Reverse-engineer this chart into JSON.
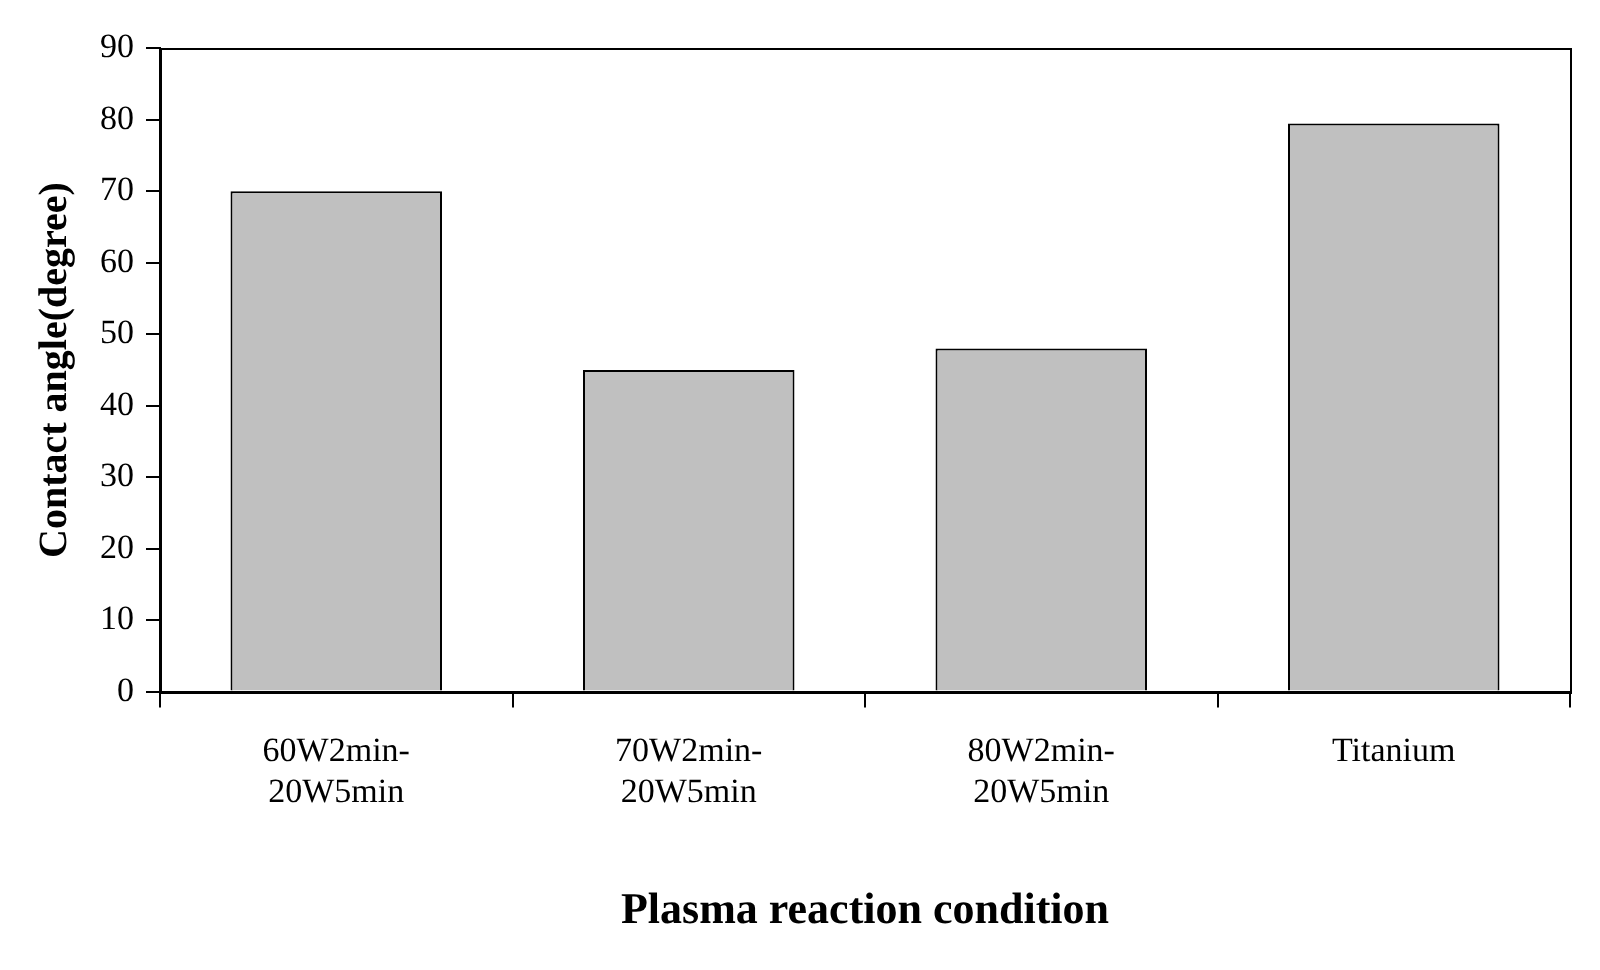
{
  "chart_data": {
    "type": "bar",
    "xlabel": "Plasma reaction condition",
    "ylabel": "Contact angle(degree)",
    "categories": [
      "60W2min-20W5min",
      "70W2min-20W5min",
      "80W2min-20W5min",
      "Titanium"
    ],
    "values": [
      70,
      45,
      48,
      79.5
    ],
    "color": "#c0c0c0",
    "ylim": [
      0,
      90
    ],
    "yticks": [
      0,
      10,
      20,
      30,
      40,
      50,
      60,
      70,
      80,
      90
    ],
    "grid": false,
    "legend": false
  }
}
